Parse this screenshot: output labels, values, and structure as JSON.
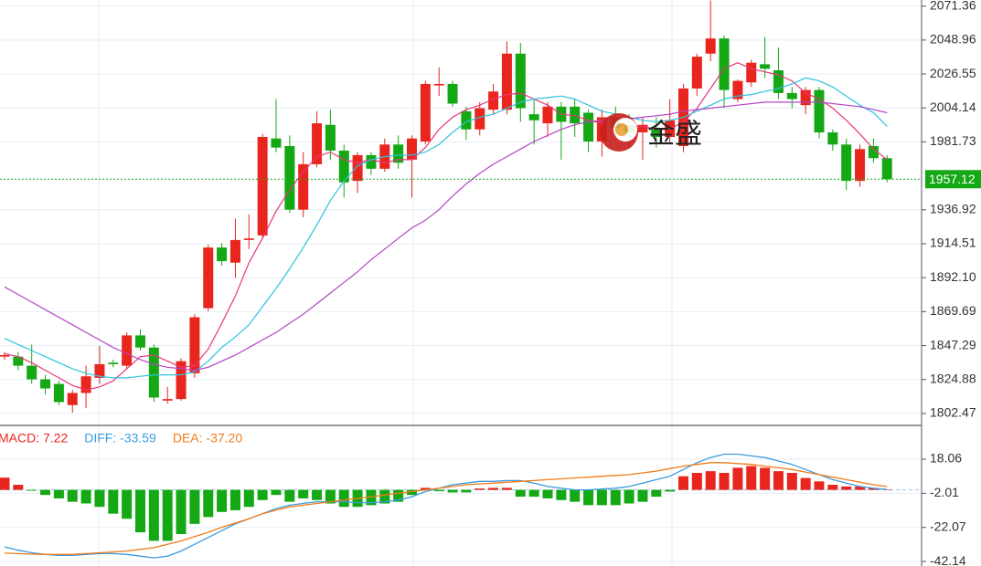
{
  "chart_data": [
    {
      "type": "candlestick",
      "up_color": "#e8261e",
      "down_color": "#14a814",
      "open": [
        1840,
        1840,
        1834,
        1825,
        1822,
        1808,
        1816,
        1826,
        1836,
        1834,
        1854,
        1846,
        1811,
        1812,
        1829,
        1872,
        1912,
        1902,
        1917,
        1920,
        1984,
        1979,
        1937,
        1967,
        1993,
        1976,
        1956,
        1973,
        1964,
        1980,
        1970,
        1982,
        2019,
        2020,
        2002,
        1990,
        2003,
        2003,
        2040,
        2000,
        1994,
        2005,
        2005,
        2001,
        1982,
        1998,
        1993,
        1988,
        1990,
        1985,
        1979,
        2017,
        2040,
        2050,
        2010,
        2021,
        2033,
        2029,
        2014,
        2006,
        2016,
        1988,
        1980,
        1956,
        1979,
        1971
      ],
      "high": [
        1843,
        1843,
        1848,
        1828,
        1824,
        1818,
        1834,
        1847,
        1838,
        1856,
        1858,
        1848,
        1820,
        1839,
        1868,
        1914,
        1915,
        1931,
        1934,
        1987,
        2010,
        1986,
        1975,
        2002,
        2003,
        1980,
        1975,
        1975,
        1984,
        1986,
        1986,
        2022,
        2031,
        2022,
        2005,
        2008,
        2020,
        2048,
        2047,
        2010,
        2008,
        2008,
        2010,
        2003,
        2003,
        2005,
        2000,
        1998,
        1998,
        2010,
        2020,
        2040,
        2075,
        2052,
        2023,
        2036,
        2051,
        2044,
        2018,
        2018,
        2018,
        1990,
        1984,
        1980,
        1984,
        1973
      ],
      "low": [
        1838,
        1831,
        1822,
        1815,
        1808,
        1803,
        1806,
        1822,
        1833,
        1832,
        1844,
        1810,
        1809,
        1811,
        1826,
        1870,
        1900,
        1892,
        1911,
        1918,
        1975,
        1935,
        1932,
        1965,
        1970,
        1945,
        1948,
        1960,
        1962,
        1964,
        1945,
        1980,
        2012,
        2005,
        1983,
        1986,
        2000,
        2000,
        1995,
        1980,
        1985,
        1970,
        1985,
        1975,
        1972,
        1985,
        1978,
        1970,
        1978,
        1980,
        1975,
        2012,
        2035,
        2004,
        2008,
        2018,
        2024,
        2010,
        2004,
        2000,
        1984,
        1976,
        1950,
        1952,
        1968,
        1955
      ],
      "close": [
        1841,
        1834,
        1825,
        1819,
        1810,
        1816,
        1827,
        1835,
        1835,
        1854,
        1846,
        1813,
        1812,
        1837,
        1866,
        1912,
        1903,
        1917,
        1918,
        1985,
        1978,
        1937,
        1967,
        1994,
        1976,
        1955,
        1973,
        1964,
        1980,
        1968,
        1984,
        2020,
        2020,
        2007,
        1990,
        2004,
        2015,
        2040,
        2004,
        1996,
        2005,
        1995,
        1994,
        1982,
        1998,
        1991,
        1988,
        1993,
        1985,
        1996,
        2017,
        2038,
        2050,
        2016,
        2022,
        2034,
        2030,
        2014,
        2010,
        2016,
        1988,
        1980,
        1956,
        1977,
        1971,
        1957.12
      ],
      "lines": [
        {
          "color": "#e8367a",
          "values": [
            1842,
            1840,
            1836,
            1831,
            1826,
            1821,
            1818,
            1820,
            1824,
            1832,
            1840,
            1841,
            1837,
            1833,
            1834,
            1845,
            1862,
            1880,
            1902,
            1918,
            1936,
            1950,
            1962,
            1972,
            1975,
            1970,
            1968,
            1970,
            1968,
            1970,
            1970,
            1978,
            1990,
            1998,
            2003,
            2006,
            2010,
            2013,
            2014,
            2010,
            2006,
            2000,
            1999,
            1996,
            1994,
            1994,
            1992,
            1992,
            1990,
            1990,
            1995,
            2004,
            2017,
            2030,
            2034,
            2030,
            2028,
            2026,
            2022,
            2014,
            2010,
            2004,
            1996,
            1987,
            1977,
            1970
          ]
        },
        {
          "color": "#2cc3e0",
          "values": [
            1852,
            1848,
            1844,
            1840,
            1836,
            1832,
            1829,
            1827,
            1826,
            1826,
            1827,
            1828,
            1828,
            1828,
            1830,
            1837,
            1846,
            1853,
            1861,
            1873,
            1885,
            1898,
            1912,
            1927,
            1943,
            1956,
            1966,
            1970,
            1972,
            1973,
            1973,
            1975,
            1980,
            1988,
            1995,
            1998,
            2000,
            2004,
            2008,
            2010,
            2011,
            2012,
            2010,
            2006,
            2002,
            2000,
            1998,
            1996,
            1995,
            1996,
            1998,
            2002,
            2006,
            2010,
            2012,
            2013,
            2015,
            2017,
            2020,
            2024,
            2022,
            2018,
            2012,
            2006,
            2001,
            1992
          ]
        },
        {
          "color": "#b445c4",
          "values": [
            1886,
            1881,
            1876,
            1871,
            1866,
            1861,
            1856,
            1851,
            1846,
            1842,
            1838,
            1835,
            1833,
            1832,
            1831,
            1833,
            1837,
            1841,
            1846,
            1851,
            1856,
            1862,
            1868,
            1875,
            1882,
            1889,
            1896,
            1904,
            1911,
            1918,
            1925,
            1930,
            1937,
            1946,
            1954,
            1961,
            1967,
            1972,
            1977,
            1982,
            1986,
            1990,
            1993,
            1995,
            1996,
            1997,
            1997,
            1998,
            1999,
            2000,
            2002,
            2003,
            2004,
            2005,
            2006,
            2007,
            2008,
            2008,
            2008,
            2008,
            2008,
            2007,
            2006,
            2005,
            2003,
            2001
          ]
        }
      ],
      "current_price": 1957.12,
      "current_price_color": "#14a814",
      "watermark": "金盛",
      "ylim": [
        1795.2,
        2075.4
      ],
      "yticks": [
        2071.36,
        2048.96,
        2026.55,
        2004.14,
        1981.73,
        1936.92,
        1914.51,
        {
          "value": 1892.1,
          "label": "1892.10"
        },
        1869.69,
        1847.29,
        1824.88,
        1802.47
      ],
      "grid": true
    },
    {
      "type": "macd",
      "series": [
        {
          "name": "MACD: 7.22",
          "color": "#e8261e",
          "down_color": "#14a814",
          "values": [
            7.22,
            3,
            -0.5,
            -3,
            -5,
            -7,
            -8,
            -10,
            -14,
            -17,
            -25,
            -30,
            -30,
            -26,
            -20,
            -16,
            -13,
            -12,
            -10,
            -6,
            -3,
            -7,
            -5,
            -6,
            -8,
            -10,
            -10,
            -9,
            -8,
            -7,
            -3,
            1.2,
            -0.8,
            -1.5,
            -1.5,
            0.8,
            1.2,
            1.2,
            -4,
            -4,
            -5,
            -6,
            -7,
            -9,
            -9,
            -9,
            -8,
            -7,
            -4,
            -1,
            8,
            10,
            11,
            10,
            13,
            14,
            13,
            11,
            10,
            7,
            5,
            3,
            2,
            2,
            1,
            0.3
          ]
        },
        {
          "name": "DIFF: -33.59",
          "color": "#3c9be0",
          "values": [
            -33.59,
            -35.5,
            -37,
            -38,
            -38.5,
            -38.5,
            -38,
            -37.5,
            -37.5,
            -38,
            -39,
            -40,
            -39,
            -36,
            -32,
            -28,
            -24,
            -20,
            -17,
            -14,
            -11,
            -9,
            -8,
            -7,
            -7,
            -7,
            -7.5,
            -7.5,
            -7,
            -6,
            -4,
            -1,
            1,
            3,
            4,
            5,
            5,
            5.5,
            5.5,
            4,
            2,
            1,
            0,
            0,
            0.5,
            1,
            2,
            4,
            6,
            8,
            12,
            16,
            19,
            21,
            21,
            20,
            19,
            17,
            15,
            12,
            9,
            6,
            4,
            2,
            1,
            0.3
          ]
        },
        {
          "name": "DEA: -37.20",
          "color": "#f07c1a",
          "values": [
            -37.2,
            -37.5,
            -37.8,
            -38,
            -38,
            -38,
            -37.5,
            -37,
            -36.5,
            -36,
            -35,
            -34,
            -32,
            -30,
            -27.5,
            -25,
            -22,
            -19.5,
            -17,
            -14,
            -12,
            -10,
            -9,
            -8,
            -7,
            -6,
            -5,
            -4,
            -3,
            -2,
            -1,
            0,
            1,
            2,
            3,
            3.5,
            4,
            4.5,
            5,
            5.5,
            6,
            6.5,
            7,
            7.5,
            8,
            8.5,
            9,
            10,
            11,
            12.5,
            14,
            15,
            16,
            16,
            15.5,
            15,
            14,
            13,
            12,
            10.5,
            9,
            7.5,
            6,
            4.5,
            3,
            2
          ]
        }
      ],
      "ylim": [
        -44.8,
        37.4
      ],
      "yticks": [
        18.06,
        -2.01,
        -22.07,
        -42.14
      ],
      "grid": true
    }
  ]
}
